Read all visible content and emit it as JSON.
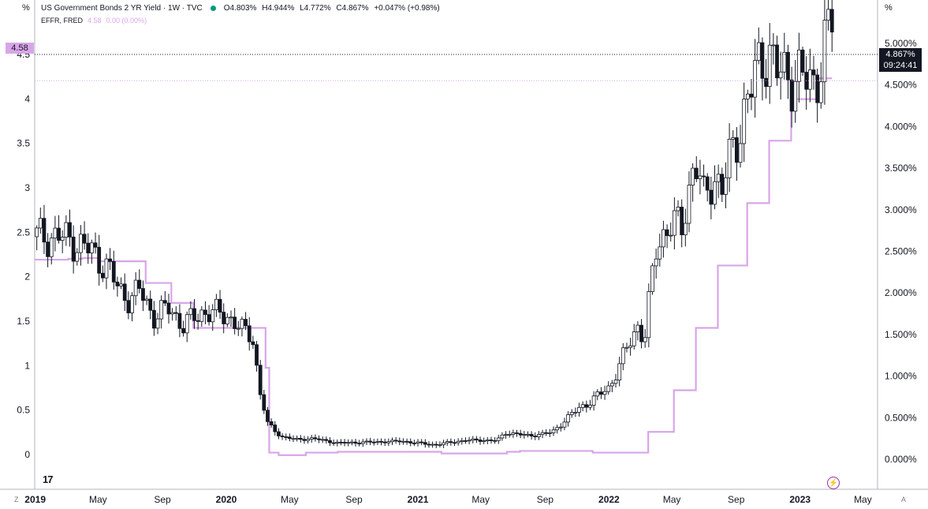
{
  "legend": {
    "title": "US Government Bonds 2 YR Yield · 1W · TVC",
    "status_color": "#089981",
    "open": "O4.803%",
    "high": "H4.944%",
    "low": "L4.772%",
    "close": "C4.867%",
    "change": "+0.047% (+0.98%)",
    "effr_label": "EFFR, FRED",
    "effr_value": "4.58",
    "effr_change": "0.00 (0.00%)"
  },
  "axis_units": {
    "right": "%",
    "left": "%"
  },
  "badges": {
    "left_value": "4.58",
    "right_value": "4.867%",
    "right_countdown": "09:24:41"
  },
  "corner_left": "Z",
  "corner_right": "A",
  "logo": "17",
  "flash_icon": "lightning-icon",
  "colors": {
    "effr": "#d8a6e8",
    "up": "#ffffff",
    "down": "#131722",
    "grid": "#e0e3eb"
  },
  "chart_data": {
    "type": "candlestick",
    "title": "US Government Bonds 2 YR Yield",
    "left_axis": {
      "ticks": [
        0,
        0.5,
        1,
        1.5,
        2,
        2.5,
        3,
        3.5,
        4,
        4.5
      ],
      "tick_labels": [
        "0",
        "0.5",
        "1",
        "1.5",
        "2",
        "2.5",
        "3",
        "3.5",
        "4",
        "4.5"
      ]
    },
    "right_axis": {
      "ticks": [
        0,
        0.5,
        1,
        1.5,
        2,
        2.5,
        3,
        3.5,
        4,
        4.5,
        5
      ],
      "tick_labels": [
        "0.000%",
        "0.500%",
        "1.000%",
        "1.500%",
        "2.000%",
        "2.500%",
        "3.000%",
        "3.500%",
        "4.000%",
        "4.500%",
        "5.000%"
      ]
    },
    "ylim": [
      -0.2,
      5.0
    ],
    "xlim": [
      "2018-12-31",
      "2023-05-29"
    ],
    "x_ticks": [
      {
        "date": "2019-01-01",
        "label": "2019"
      },
      {
        "date": "2019-05-01",
        "label": "May"
      },
      {
        "date": "2019-09-01",
        "label": "Sep"
      },
      {
        "date": "2020-01-01",
        "label": "2020"
      },
      {
        "date": "2020-05-01",
        "label": "May"
      },
      {
        "date": "2020-09-01",
        "label": "Sep"
      },
      {
        "date": "2021-01-01",
        "label": "2021"
      },
      {
        "date": "2021-05-01",
        "label": "May"
      },
      {
        "date": "2021-09-01",
        "label": "Sep"
      },
      {
        "date": "2022-01-01",
        "label": "2022"
      },
      {
        "date": "2022-05-01",
        "label": "May"
      },
      {
        "date": "2022-09-01",
        "label": "Sep"
      },
      {
        "date": "2023-01-01",
        "label": "2023"
      },
      {
        "date": "2023-05-01",
        "label": "May"
      }
    ],
    "yield_anchors": [
      [
        "2019-01-01",
        2.45
      ],
      [
        "2019-02-15",
        2.45
      ],
      [
        "2019-03-15",
        2.4
      ],
      [
        "2019-04-15",
        2.3
      ],
      [
        "2019-05-20",
        2.1
      ],
      [
        "2019-06-10",
        1.85
      ],
      [
        "2019-06-30",
        1.75
      ],
      [
        "2019-07-20",
        1.85
      ],
      [
        "2019-08-15",
        1.55
      ],
      [
        "2019-09-15",
        1.65
      ],
      [
        "2019-10-10",
        1.45
      ],
      [
        "2019-11-15",
        1.6
      ],
      [
        "2019-12-31",
        1.58
      ],
      [
        "2020-01-30",
        1.4
      ],
      [
        "2020-02-20",
        1.35
      ],
      [
        "2020-03-05",
        0.7
      ],
      [
        "2020-03-20",
        0.35
      ],
      [
        "2020-04-15",
        0.2
      ],
      [
        "2020-05-15",
        0.17
      ],
      [
        "2020-06-15",
        0.18
      ],
      [
        "2020-08-01",
        0.13
      ],
      [
        "2020-10-01",
        0.14
      ],
      [
        "2020-12-01",
        0.15
      ],
      [
        "2021-02-01",
        0.11
      ],
      [
        "2021-04-01",
        0.16
      ],
      [
        "2021-06-01",
        0.16
      ],
      [
        "2021-06-20",
        0.25
      ],
      [
        "2021-08-01",
        0.21
      ],
      [
        "2021-09-15",
        0.25
      ],
      [
        "2021-10-20",
        0.45
      ],
      [
        "2021-12-01",
        0.62
      ],
      [
        "2022-01-01",
        0.75
      ],
      [
        "2022-02-01",
        1.15
      ],
      [
        "2022-02-25",
        1.45
      ],
      [
        "2022-03-10",
        1.3
      ],
      [
        "2022-03-31",
        2.3
      ],
      [
        "2022-04-25",
        2.6
      ],
      [
        "2022-05-20",
        2.55
      ],
      [
        "2022-06-14",
        3.35
      ],
      [
        "2022-07-01",
        2.85
      ],
      [
        "2022-07-20",
        3.15
      ],
      [
        "2022-08-05",
        3.0
      ],
      [
        "2022-08-25",
        3.4
      ],
      [
        "2022-09-20",
        3.95
      ],
      [
        "2022-10-20",
        4.45
      ],
      [
        "2022-11-01",
        4.6
      ],
      [
        "2022-11-15",
        4.3
      ],
      [
        "2022-12-01",
        4.25
      ],
      [
        "2022-12-20",
        4.3
      ],
      [
        "2023-01-10",
        4.2
      ],
      [
        "2023-01-25",
        4.15
      ],
      [
        "2023-02-10",
        4.45
      ],
      [
        "2023-02-25",
        4.75
      ],
      [
        "2023-03-03",
        4.867
      ]
    ],
    "effr_steps": [
      [
        "2018-12-31",
        2.4
      ],
      [
        "2019-01-10",
        2.4
      ],
      [
        "2019-02-10",
        2.4
      ],
      [
        "2019-03-05",
        2.41
      ],
      [
        "2019-04-01",
        2.42
      ],
      [
        "2019-05-01",
        2.38
      ],
      [
        "2019-06-01",
        2.38
      ],
      [
        "2019-06-25",
        2.38
      ],
      [
        "2019-07-31",
        2.12
      ],
      [
        "2019-09-18",
        1.88
      ],
      [
        "2019-10-30",
        1.58
      ],
      [
        "2020-03-04",
        1.58
      ],
      [
        "2020-03-16",
        1.1
      ],
      [
        "2020-03-23",
        0.08
      ],
      [
        "2020-04-10",
        0.05
      ],
      [
        "2020-06-01",
        0.08
      ],
      [
        "2020-08-01",
        0.09
      ],
      [
        "2020-10-01",
        0.09
      ],
      [
        "2021-02-15",
        0.07
      ],
      [
        "2021-06-20",
        0.09
      ],
      [
        "2021-07-15",
        0.1
      ],
      [
        "2021-12-01",
        0.08
      ],
      [
        "2022-03-17",
        0.33
      ],
      [
        "2022-05-05",
        0.83
      ],
      [
        "2022-06-16",
        1.58
      ],
      [
        "2022-07-28",
        2.33
      ],
      [
        "2022-09-22",
        3.08
      ],
      [
        "2022-11-03",
        3.83
      ],
      [
        "2022-12-15",
        4.33
      ],
      [
        "2023-02-02",
        4.58
      ],
      [
        "2023-03-03",
        4.58
      ]
    ],
    "effr_last": 4.58,
    "yield_last": 4.867
  }
}
